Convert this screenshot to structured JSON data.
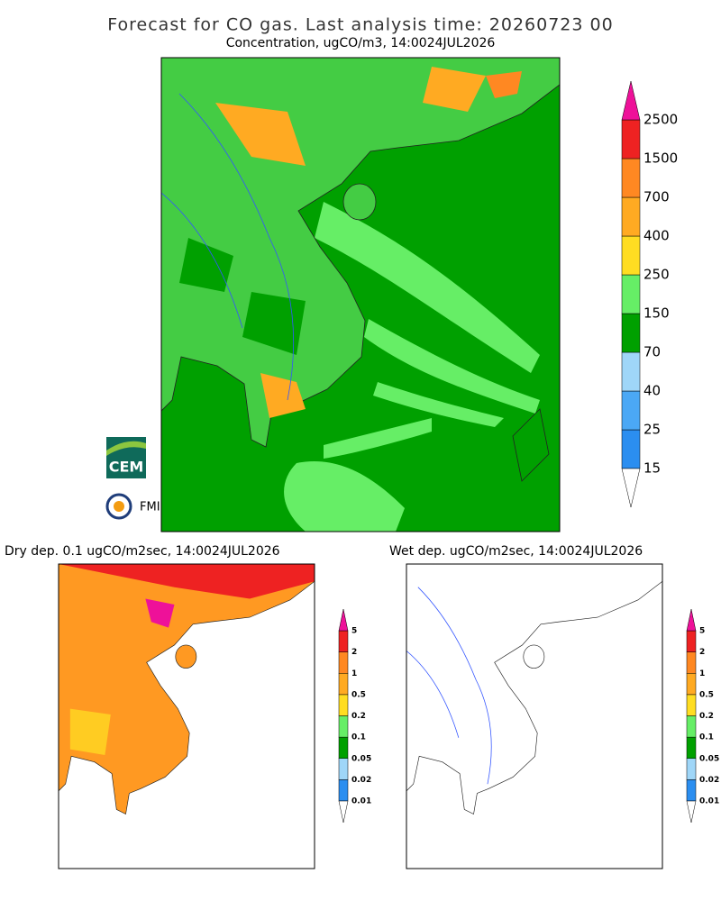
{
  "title": "Forecast for CO gas. Last analysis time: 20260723 00",
  "main": {
    "subtitle": "Concentration, ugCO/m3, 14:0024JUL2026",
    "colorbar": {
      "levels": [
        15,
        25,
        40,
        70,
        150,
        250,
        400,
        700,
        1500,
        2500
      ],
      "colors": [
        "#2b8ef0",
        "#4ba8f5",
        "#9fd6f8",
        "#00a000",
        "#66ee66",
        "#ffdd22",
        "#ffaa22",
        "#ff8822",
        "#ee2222"
      ],
      "over_color": "#ee1199",
      "under_color": "#ffffff"
    }
  },
  "dry": {
    "title": "Dry dep. 0.1 ugCO/m2sec, 14:0024JUL2026",
    "colorbar": {
      "levels": [
        0.01,
        0.02,
        0.05,
        0.1,
        0.2,
        0.5,
        1,
        2,
        5
      ],
      "colors": [
        "#2b8ef0",
        "#9fd6f8",
        "#00a000",
        "#66ee66",
        "#ffdd22",
        "#ffaa22",
        "#ff8822",
        "#ee2222"
      ],
      "over_color": "#ee1199",
      "under_color": "#ffffff"
    }
  },
  "wet": {
    "title": "Wet dep. ugCO/m2sec, 14:0024JUL2026",
    "colorbar": {
      "levels": [
        0.01,
        0.02,
        0.05,
        0.1,
        0.2,
        0.5,
        1,
        2,
        5
      ],
      "colors": [
        "#2b8ef0",
        "#9fd6f8",
        "#00a000",
        "#66ee66",
        "#ffdd22",
        "#ffaa22",
        "#ff8822",
        "#ee2222"
      ],
      "over_color": "#ee1199",
      "under_color": "#ffffff"
    }
  },
  "logos": [
    "CEM",
    "FMI"
  ]
}
